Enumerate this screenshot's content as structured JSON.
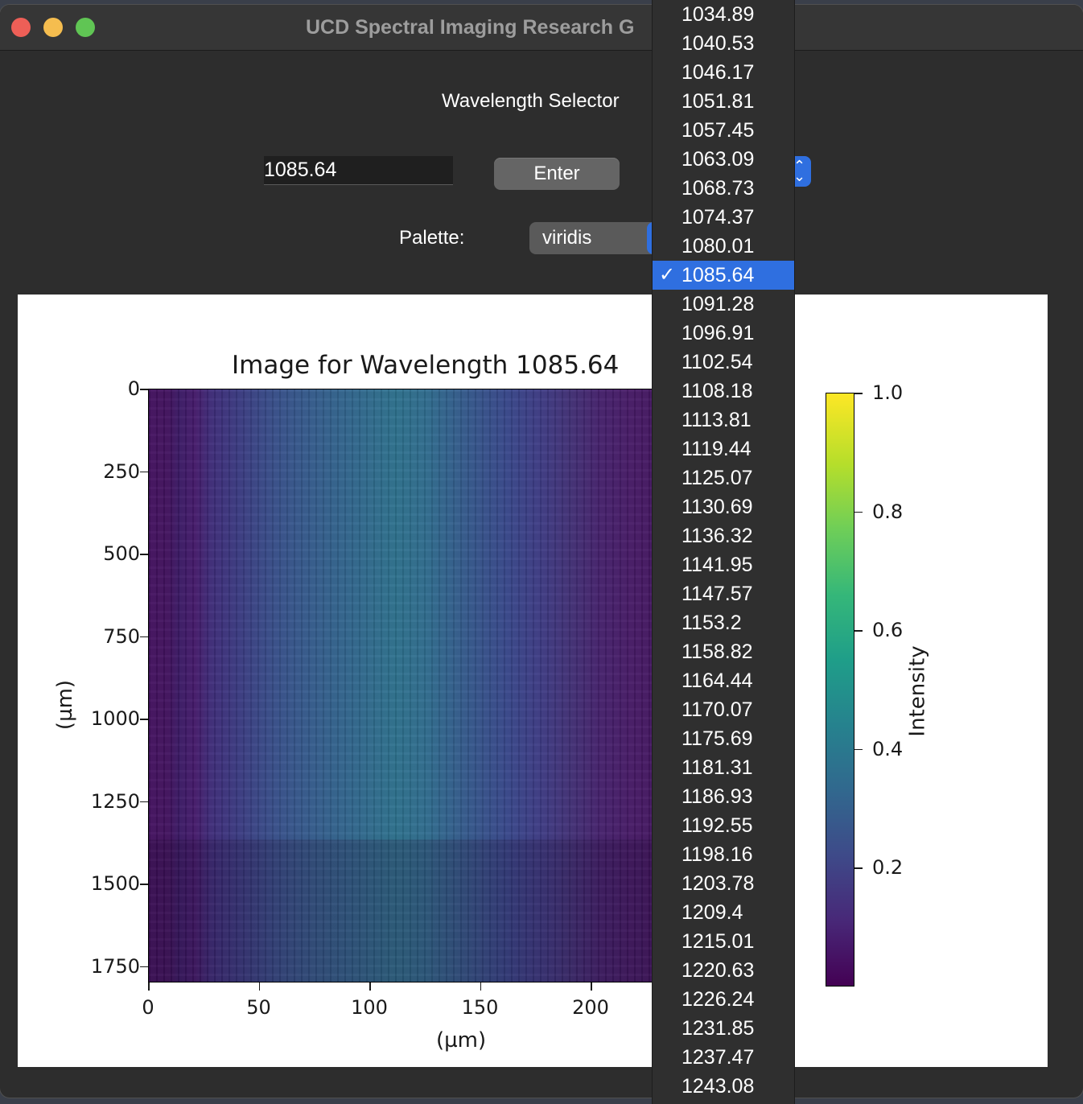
{
  "window": {
    "title": "UCD Spectral Imaging Research G"
  },
  "controls": {
    "heading": "Wavelength Selector",
    "wavelength_value": "1085.64",
    "enter_label": "Enter",
    "palette_label": "Palette:",
    "palette_value": "viridis"
  },
  "chart_data": {
    "type": "heatmap",
    "title": "Image for Wavelength 1085.64",
    "xlabel": "(µm)",
    "ylabel": "(µm)",
    "x_ticks": [
      "0",
      "50",
      "100",
      "150",
      "200"
    ],
    "y_ticks": [
      "0",
      "250",
      "500",
      "750",
      "1000",
      "1250",
      "1500",
      "1750"
    ],
    "colormap": "viridis",
    "colorbar_label": "Intensity",
    "colorbar_ticks": [
      "1.0",
      "0.8",
      "0.6",
      "0.4",
      "0.2"
    ],
    "colorbar_range": [
      0,
      1.0
    ]
  },
  "dropdown": {
    "selected": "1085.64",
    "items": [
      "1034.89",
      "1040.53",
      "1046.17",
      "1051.81",
      "1057.45",
      "1063.09",
      "1068.73",
      "1074.37",
      "1080.01",
      "1085.64",
      "1091.28",
      "1096.91",
      "1102.54",
      "1108.18",
      "1113.81",
      "1119.44",
      "1125.07",
      "1130.69",
      "1136.32",
      "1141.95",
      "1147.57",
      "1153.2",
      "1158.82",
      "1164.44",
      "1170.07",
      "1175.69",
      "1181.31",
      "1186.93",
      "1192.55",
      "1198.16",
      "1203.78",
      "1209.4",
      "1215.01",
      "1220.63",
      "1226.24",
      "1231.85",
      "1237.47",
      "1243.08"
    ]
  },
  "colors": {
    "accent": "#2f6fe0",
    "window_bg": "#2d2d2d"
  }
}
